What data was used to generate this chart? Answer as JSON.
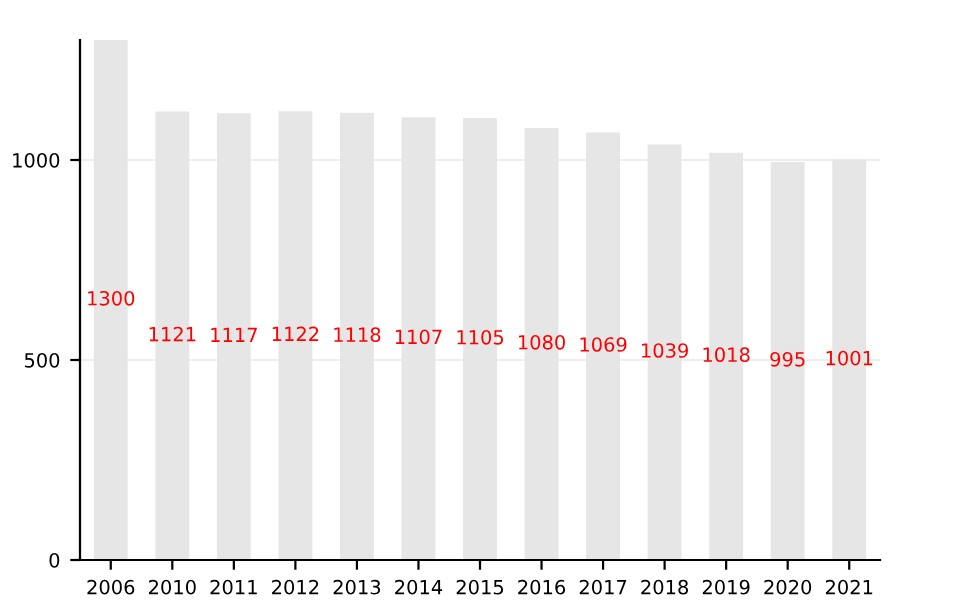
{
  "chart_data": {
    "type": "bar",
    "categories": [
      "2006",
      "2010",
      "2011",
      "2012",
      "2013",
      "2014",
      "2015",
      "2016",
      "2017",
      "2018",
      "2019",
      "2020",
      "2021"
    ],
    "values": [
      1300,
      1121,
      1117,
      1122,
      1118,
      1107,
      1105,
      1080,
      1069,
      1039,
      1018,
      995,
      1001
    ],
    "color": "#e6e6e6",
    "ylim": [
      0,
      1300
    ],
    "yticks": [
      0,
      500,
      1000
    ],
    "grid": "y",
    "data_labels": true
  }
}
